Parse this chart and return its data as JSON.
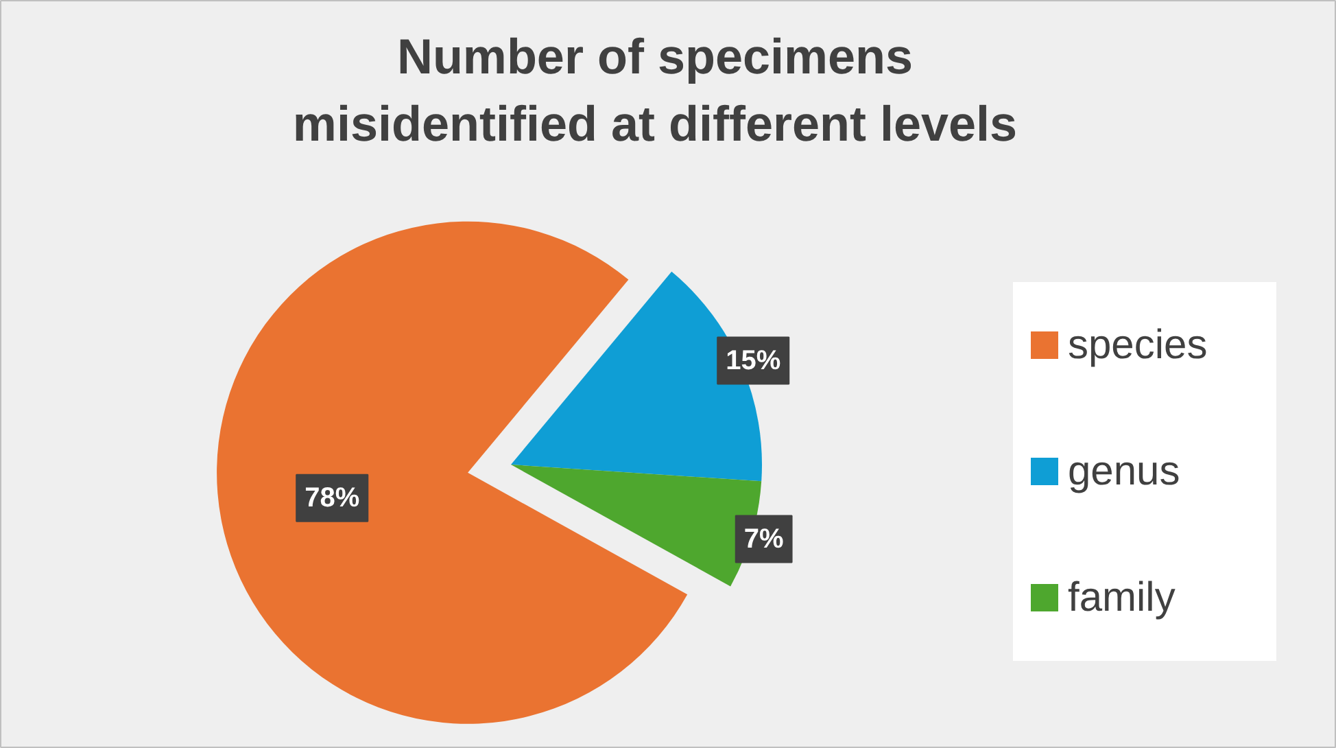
{
  "chart_data": {
    "type": "pie",
    "title": "Number of specimens misidentified at different levels",
    "categories": [
      "species",
      "genus",
      "family"
    ],
    "values": [
      78,
      15,
      7
    ],
    "colors": [
      "#ea7331",
      "#0f9ed5",
      "#4ea72e"
    ],
    "value_labels": [
      "78%",
      "15%",
      "7%"
    ],
    "legend": "right"
  }
}
